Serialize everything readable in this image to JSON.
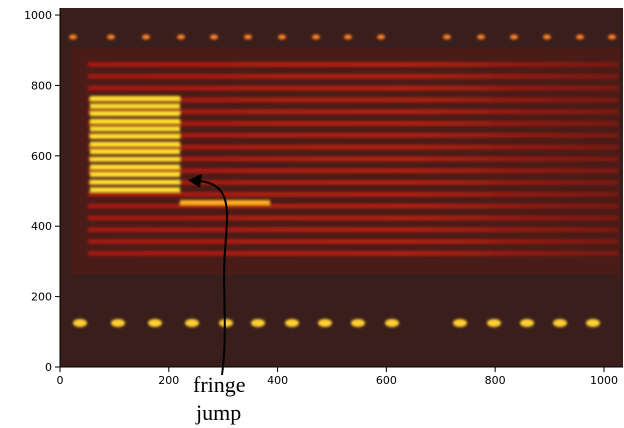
{
  "chart_data": {
    "type": "image",
    "xlim": [
      0,
      1035
    ],
    "ylim": [
      0,
      1020
    ],
    "xticks": [
      0,
      200,
      400,
      600,
      800,
      1000
    ],
    "yticks": [
      0,
      200,
      400,
      600,
      800,
      1000
    ],
    "annotation": [
      "fringe",
      "jump"
    ]
  }
}
